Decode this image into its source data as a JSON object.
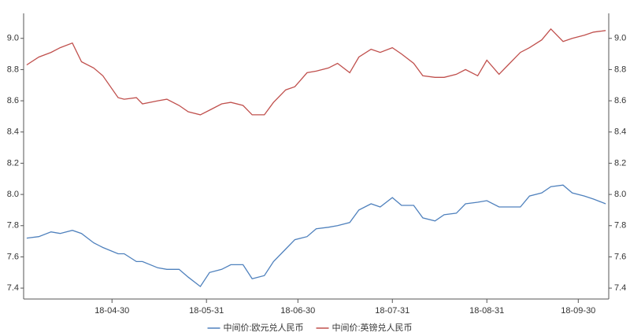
{
  "chart_data": {
    "type": "line",
    "x": [
      "18-04-02",
      "18-04-06",
      "18-04-10",
      "18-04-13",
      "18-04-17",
      "18-04-20",
      "18-04-24",
      "18-04-27",
      "18-05-02",
      "18-05-04",
      "18-05-08",
      "18-05-10",
      "18-05-15",
      "18-05-18",
      "18-05-22",
      "18-05-25",
      "18-05-29",
      "18-06-01",
      "18-06-05",
      "18-06-08",
      "18-06-12",
      "18-06-15",
      "18-06-19",
      "18-06-22",
      "18-06-26",
      "18-06-29",
      "18-07-03",
      "18-07-06",
      "18-07-10",
      "18-07-13",
      "18-07-17",
      "18-07-20",
      "18-07-24",
      "18-07-27",
      "18-07-31",
      "18-08-03",
      "18-08-07",
      "18-08-10",
      "18-08-14",
      "18-08-17",
      "18-08-21",
      "18-08-24",
      "18-08-28",
      "18-08-31",
      "18-09-04",
      "18-09-07",
      "18-09-11",
      "18-09-14",
      "18-09-18",
      "18-09-21",
      "18-09-25",
      "18-09-28",
      "18-10-02",
      "18-10-05",
      "18-10-09"
    ],
    "series": [
      {
        "name": "中间价:欧元兑人民币",
        "color": "#4f81bd",
        "values": [
          7.72,
          7.73,
          7.76,
          7.75,
          7.77,
          7.75,
          7.69,
          7.66,
          7.62,
          7.62,
          7.57,
          7.57,
          7.53,
          7.52,
          7.52,
          7.47,
          7.41,
          7.5,
          7.52,
          7.55,
          7.55,
          7.46,
          7.48,
          7.57,
          7.65,
          7.71,
          7.73,
          7.78,
          7.79,
          7.8,
          7.82,
          7.9,
          7.94,
          7.92,
          7.98,
          7.93,
          7.93,
          7.85,
          7.83,
          7.87,
          7.88,
          7.94,
          7.95,
          7.96,
          7.92,
          7.92,
          7.92,
          7.99,
          8.01,
          8.05,
          8.06,
          8.01,
          7.99,
          7.97,
          7.94
        ]
      },
      {
        "name": "中间价:英镑兑人民币",
        "color": "#c0504d",
        "values": [
          8.83,
          8.88,
          8.91,
          8.94,
          8.97,
          8.85,
          8.81,
          8.76,
          8.62,
          8.61,
          8.62,
          8.58,
          8.6,
          8.61,
          8.57,
          8.53,
          8.51,
          8.54,
          8.58,
          8.59,
          8.57,
          8.51,
          8.51,
          8.59,
          8.67,
          8.69,
          8.78,
          8.79,
          8.81,
          8.84,
          8.78,
          8.88,
          8.93,
          8.91,
          8.94,
          8.9,
          8.84,
          8.76,
          8.75,
          8.75,
          8.77,
          8.8,
          8.76,
          8.86,
          8.77,
          8.83,
          8.91,
          8.94,
          8.99,
          9.06,
          8.98,
          9.0,
          9.02,
          9.04,
          9.05
        ]
      }
    ],
    "xlim": [
      "18-04-01",
      "18-10-10"
    ],
    "xticks": [
      "18-04-30",
      "18-05-31",
      "18-06-30",
      "18-07-31",
      "18-08-31",
      "18-09-30"
    ],
    "ylim": [
      7.33,
      9.16
    ],
    "yticks": [
      7.4,
      7.6,
      7.8,
      {
        "value": 8,
        "label": "8.0"
      },
      8.2,
      8.4,
      8.6,
      8.8,
      {
        "value": 9,
        "label": "9.0"
      }
    ],
    "y2lim": [
      7.33,
      9.16
    ],
    "y2ticks": [
      7.4,
      7.6,
      7.8,
      {
        "value": 8,
        "label": "8.0"
      },
      8.2,
      8.4,
      8.6,
      8.8,
      {
        "value": 9,
        "label": "9.0"
      }
    ],
    "legend": "bottom"
  }
}
